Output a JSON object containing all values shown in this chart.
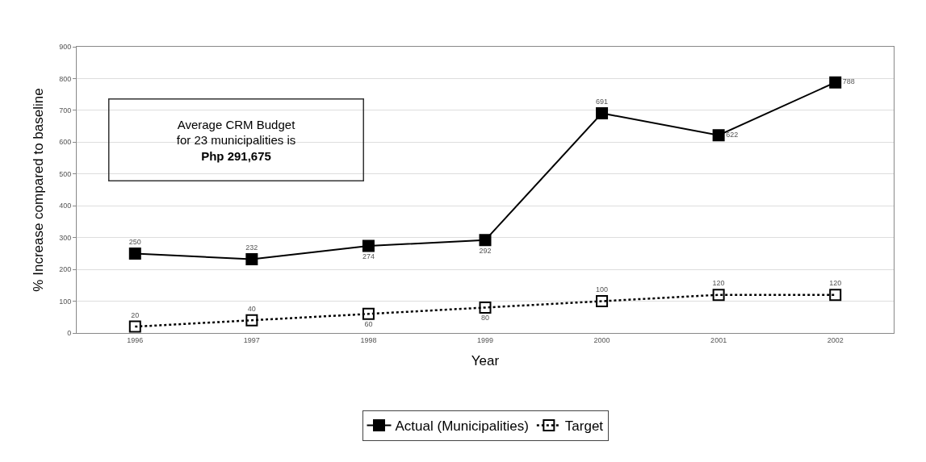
{
  "chart_data": {
    "type": "line",
    "xlabel": "Year",
    "ylabel": "% Increase compared to baseline",
    "categories": [
      "1996",
      "1997",
      "1998",
      "1999",
      "2000",
      "2001",
      "2002"
    ],
    "series": [
      {
        "name": "Actual (Municipalities)",
        "color": "#000000",
        "values": [
          250,
          232,
          274,
          292,
          691,
          622,
          788
        ],
        "marker": "square",
        "line_style": "solid"
      },
      {
        "name": "Target",
        "color": "#000000",
        "values": [
          20,
          40,
          60,
          80,
          100,
          120,
          120
        ],
        "marker": "square",
        "line_style": "dotted"
      }
    ],
    "ylim": [
      0,
      900
    ],
    "yticks": [
      0,
      100,
      200,
      300,
      400,
      500,
      600,
      700,
      800,
      900
    ],
    "grid": "y",
    "legend": "bottom",
    "data_labels": true,
    "annotations": [
      "Average CRM Budget\nfor 23 municipalities is\nPhp 291,675"
    ]
  }
}
